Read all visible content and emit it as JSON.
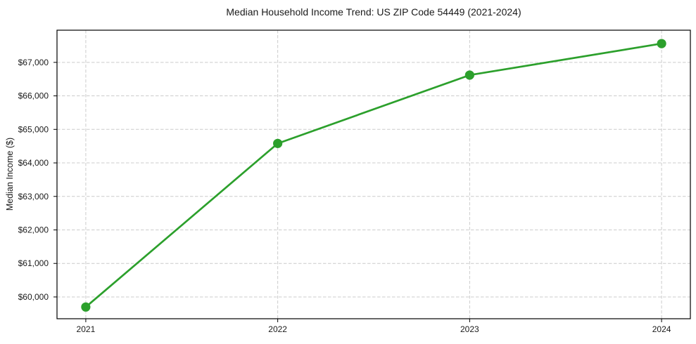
{
  "chart_data": {
    "type": "line",
    "title": "Median Household Income Trend: US ZIP Code 54449 (2021-2024)",
    "xlabel": "",
    "ylabel": "Median Income ($)",
    "x": [
      2021,
      2022,
      2023,
      2024
    ],
    "values": [
      59700,
      64580,
      66620,
      67560
    ],
    "xtick_labels": [
      "2021",
      "2022",
      "2023",
      "2024"
    ],
    "ytick_values": [
      60000,
      61000,
      62000,
      63000,
      64000,
      65000,
      66000,
      67000
    ],
    "ytick_labels": [
      "$60,000",
      "$61,000",
      "$62,000",
      "$63,000",
      "$64,000",
      "$65,000",
      "$66,000",
      "$67,000"
    ],
    "xlim": [
      2020.85,
      2024.15
    ],
    "ylim": [
      59350,
      67960
    ],
    "grid": true,
    "grid_style": "dashed",
    "legend_position": "none",
    "colors": {
      "line": "#2ca02c",
      "marker": "#2ca02c",
      "grid": "#cccccc",
      "axis": "#000000",
      "text": "#1a1a1a",
      "background": "#ffffff"
    }
  }
}
